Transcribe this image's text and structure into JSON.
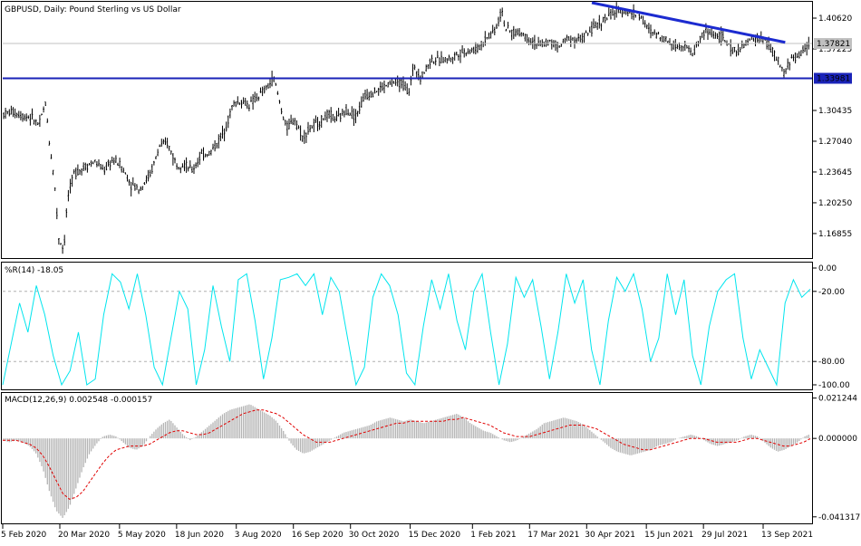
{
  "window": {
    "symbol_title": "GBPUSD, Daily:  Pound Sterling vs US Dollar"
  },
  "colors": {
    "background": "#ffffff",
    "candle": "#000000",
    "trendline": "#1c2bd0",
    "support_line": "#1a23b8",
    "current_price_line": "#c0c0c0",
    "wpr_line": "#00e5ee",
    "macd_hist": "#b4b4b4",
    "macd_signal": "#e00000",
    "level_line": "#b0b0b0",
    "label_bg_support": "#1a23b8",
    "label_bg_current": "#c0c0c0"
  },
  "chart_data": [
    {
      "type": "candlestick",
      "title": "GBPUSD, Daily:  Pound Sterling vs US Dollar",
      "y_ticks": [
        "1.40620",
        "1.37225",
        "1.30435",
        "1.27040",
        "1.23645",
        "1.20250",
        "1.16855"
      ],
      "ylim": [
        1.1425,
        1.4232
      ],
      "x_ticks": [
        "5 Feb 2020",
        "20 Mar 2020",
        "5 May 2020",
        "18 Jun 2020",
        "3 Aug 2020",
        "16 Sep 2020",
        "30 Oct 2020",
        "15 Dec 2020",
        "1 Feb 2021",
        "17 Mar 2021",
        "30 Apr 2021",
        "15 Jun 2021",
        "29 Jul 2021",
        "13 Sep 2021"
      ],
      "support_level": {
        "label": "1.33981",
        "value": 1.33981
      },
      "current_price": {
        "label": "1.37821",
        "value": 1.37821
      },
      "trendline": {
        "from": {
          "x": "4 May 2021",
          "y": 1.4232
        },
        "to": {
          "x": "30 Sep 2021",
          "y": 1.3795
        }
      },
      "path": [
        {
          "x": "5 Feb 2020",
          "y": 1.3
        },
        {
          "x": "12 Feb 2020",
          "y": 1.303
        },
        {
          "x": "21 Feb 2020",
          "y": 1.298
        },
        {
          "x": "27 Feb 2020",
          "y": 1.297
        },
        {
          "x": "4 Mar 2020",
          "y": 1.288
        },
        {
          "x": "9 Mar 2020",
          "y": 1.312
        },
        {
          "x": "12 Mar 2020",
          "y": 1.268
        },
        {
          "x": "16 Mar 2020",
          "y": 1.225
        },
        {
          "x": "19 Mar 2020",
          "y": 1.165
        },
        {
          "x": "23 Mar 2020",
          "y": 1.15
        },
        {
          "x": "26 Mar 2020",
          "y": 1.208
        },
        {
          "x": "31 Mar 2020",
          "y": 1.235
        },
        {
          "x": "8 Apr 2020",
          "y": 1.242
        },
        {
          "x": "16 Apr 2020",
          "y": 1.248
        },
        {
          "x": "23 Apr 2020",
          "y": 1.238
        },
        {
          "x": "30 Apr 2020",
          "y": 1.25
        },
        {
          "x": "6 May 2020",
          "y": 1.244
        },
        {
          "x": "14 May 2020",
          "y": 1.222
        },
        {
          "x": "21 May 2020",
          "y": 1.218
        },
        {
          "x": "29 May 2020",
          "y": 1.235
        },
        {
          "x": "5 Jun 2020",
          "y": 1.265
        },
        {
          "x": "11 Jun 2020",
          "y": 1.268
        },
        {
          "x": "18 Jun 2020",
          "y": 1.245
        },
        {
          "x": "24 Jun 2020",
          "y": 1.245
        },
        {
          "x": "30 Jun 2020",
          "y": 1.238
        },
        {
          "x": "7 Jul 2020",
          "y": 1.255
        },
        {
          "x": "14 Jul 2020",
          "y": 1.258
        },
        {
          "x": "21 Jul 2020",
          "y": 1.272
        },
        {
          "x": "27 Jul 2020",
          "y": 1.29
        },
        {
          "x": "31 Jul 2020",
          "y": 1.31
        },
        {
          "x": "6 Aug 2020",
          "y": 1.315
        },
        {
          "x": "13 Aug 2020",
          "y": 1.31
        },
        {
          "x": "20 Aug 2020",
          "y": 1.32
        },
        {
          "x": "27 Aug 2020",
          "y": 1.33
        },
        {
          "x": "1 Sep 2020",
          "y": 1.34
        },
        {
          "x": "8 Sep 2020",
          "y": 1.298
        },
        {
          "x": "11 Sep 2020",
          "y": 1.285
        },
        {
          "x": "17 Sep 2020",
          "y": 1.295
        },
        {
          "x": "23 Sep 2020",
          "y": 1.275
        },
        {
          "x": "29 Sep 2020",
          "y": 1.285
        },
        {
          "x": "6 Oct 2020",
          "y": 1.292
        },
        {
          "x": "13 Oct 2020",
          "y": 1.3
        },
        {
          "x": "20 Oct 2020",
          "y": 1.295
        },
        {
          "x": "27 Oct 2020",
          "y": 1.305
        },
        {
          "x": "3 Nov 2020",
          "y": 1.298
        },
        {
          "x": "10 Nov 2020",
          "y": 1.32
        },
        {
          "x": "17 Nov 2020",
          "y": 1.325
        },
        {
          "x": "24 Nov 2020",
          "y": 1.33
        },
        {
          "x": "1 Dec 2020",
          "y": 1.335
        },
        {
          "x": "8 Dec 2020",
          "y": 1.335
        },
        {
          "x": "14 Dec 2020",
          "y": 1.325
        },
        {
          "x": "18 Dec 2020",
          "y": 1.355
        },
        {
          "x": "23 Dec 2020",
          "y": 1.34
        },
        {
          "x": "31 Dec 2020",
          "y": 1.36
        },
        {
          "x": "8 Jan 2021",
          "y": 1.36
        },
        {
          "x": "15 Jan 2021",
          "y": 1.362
        },
        {
          "x": "22 Jan 2021",
          "y": 1.368
        },
        {
          "x": "29 Jan 2021",
          "y": 1.37
        },
        {
          "x": "5 Feb 2021",
          "y": 1.372
        },
        {
          "x": "12 Feb 2021",
          "y": 1.385
        },
        {
          "x": "19 Feb 2021",
          "y": 1.395
        },
        {
          "x": "24 Feb 2021",
          "y": 1.415
        },
        {
          "x": "26 Feb 2021",
          "y": 1.395
        },
        {
          "x": "4 Mar 2021",
          "y": 1.39
        },
        {
          "x": "11 Mar 2021",
          "y": 1.39
        },
        {
          "x": "18 Mar 2021",
          "y": 1.382
        },
        {
          "x": "25 Mar 2021",
          "y": 1.376
        },
        {
          "x": "1 Apr 2021",
          "y": 1.38
        },
        {
          "x": "9 Apr 2021",
          "y": 1.375
        },
        {
          "x": "16 Apr 2021",
          "y": 1.385
        },
        {
          "x": "23 Apr 2021",
          "y": 1.382
        },
        {
          "x": "30 Apr 2021",
          "y": 1.388
        },
        {
          "x": "7 May 2021",
          "y": 1.398
        },
        {
          "x": "14 May 2021",
          "y": 1.405
        },
        {
          "x": "21 May 2021",
          "y": 1.412
        },
        {
          "x": "28 May 2021",
          "y": 1.415
        },
        {
          "x": "3 Jun 2021",
          "y": 1.412
        },
        {
          "x": "10 Jun 2021",
          "y": 1.41
        },
        {
          "x": "17 Jun 2021",
          "y": 1.392
        },
        {
          "x": "24 Jun 2021",
          "y": 1.388
        },
        {
          "x": "1 Jul 2021",
          "y": 1.382
        },
        {
          "x": "8 Jul 2021",
          "y": 1.375
        },
        {
          "x": "15 Jul 2021",
          "y": 1.378
        },
        {
          "x": "20 Jul 2021",
          "y": 1.365
        },
        {
          "x": "26 Jul 2021",
          "y": 1.382
        },
        {
          "x": "30 Jul 2021",
          "y": 1.392
        },
        {
          "x": "6 Aug 2021",
          "y": 1.388
        },
        {
          "x": "13 Aug 2021",
          "y": 1.385
        },
        {
          "x": "20 Aug 2021",
          "y": 1.37
        },
        {
          "x": "27 Aug 2021",
          "y": 1.372
        },
        {
          "x": "3 Sep 2021",
          "y": 1.382
        },
        {
          "x": "10 Sep 2021",
          "y": 1.385
        },
        {
          "x": "17 Sep 2021",
          "y": 1.378
        },
        {
          "x": "22 Sep 2021",
          "y": 1.365
        },
        {
          "x": "29 Sep 2021",
          "y": 1.345
        },
        {
          "x": "4 Oct 2021",
          "y": 1.36
        },
        {
          "x": "11 Oct 2021",
          "y": 1.365
        },
        {
          "x": "18 Oct 2021",
          "y": 1.378
        }
      ]
    },
    {
      "type": "line",
      "title": "%R(14) -18.05",
      "y_ticks": [
        "0.00",
        "-20.00",
        "-80.00",
        "-100.00"
      ],
      "ylim": [
        -100,
        0
      ],
      "levels": [
        -20,
        -80
      ],
      "series": [
        {
          "values": [
            -100,
            -65,
            -30,
            -55,
            -15,
            -40,
            -75,
            -100,
            -88,
            -55,
            -100,
            -95,
            -40,
            -5,
            -12,
            -35,
            -5,
            -40,
            -85,
            -100,
            -60,
            -20,
            -35,
            -100,
            -70,
            -15,
            -50,
            -80,
            -10,
            -5,
            -45,
            -95,
            -60,
            -10,
            -8,
            -5,
            -15,
            -5,
            -40,
            -8,
            -20,
            -60,
            -100,
            -85,
            -25,
            -5,
            -15,
            -40,
            -90,
            -100,
            -50,
            -10,
            -35,
            -5,
            -45,
            -70,
            -20,
            -5,
            -55,
            -100,
            -65,
            -8,
            -25,
            -10,
            -50,
            -95,
            -55,
            -5,
            -30,
            -10,
            -70,
            -100,
            -45,
            -8,
            -20,
            -5,
            -35,
            -80,
            -60,
            -5,
            -40,
            -10,
            -75,
            -100,
            -50,
            -20,
            -10,
            -5,
            -60,
            -95,
            -70,
            -85,
            -100,
            -30,
            -10,
            -25,
            -18.05
          ]
        }
      ]
    },
    {
      "type": "bar",
      "title": "MACD(12,26,9) 0.002548 -0.000157",
      "y_ticks": [
        "0.021244",
        "0.000000",
        "-0.041317"
      ],
      "ylim": [
        -0.0438,
        0.0225
      ],
      "series": [
        {
          "name": "MACD",
          "values": [
            -0.001,
            -0.002,
            -0.001,
            -0.002,
            -0.004,
            -0.008,
            -0.016,
            -0.028,
            -0.038,
            -0.042,
            -0.036,
            -0.026,
            -0.016,
            -0.008,
            -0.003,
            0.001,
            0.002,
            0.001,
            -0.002,
            -0.005,
            -0.006,
            -0.004,
            0.001,
            0.005,
            0.008,
            0.01,
            0.006,
            0.002,
            -0.001,
            0.001,
            0.004,
            0.007,
            0.01,
            0.013,
            0.015,
            0.016,
            0.017,
            0.018,
            0.016,
            0.014,
            0.012,
            0.009,
            0.004,
            -0.002,
            -0.006,
            -0.008,
            -0.007,
            -0.005,
            -0.003,
            -0.001,
            0.001,
            0.003,
            0.004,
            0.005,
            0.006,
            0.007,
            0.009,
            0.01,
            0.011,
            0.01,
            0.009,
            0.01,
            0.009,
            0.008,
            0.009,
            0.01,
            0.011,
            0.012,
            0.013,
            0.011,
            0.008,
            0.006,
            0.004,
            0.003,
            0.001,
            -0.001,
            -0.002,
            -0.001,
            0.001,
            0.003,
            0.005,
            0.008,
            0.009,
            0.01,
            0.011,
            0.01,
            0.009,
            0.007,
            0.004,
            0.001,
            -0.002,
            -0.005,
            -0.007,
            -0.008,
            -0.009,
            -0.008,
            -0.007,
            -0.006,
            -0.004,
            -0.003,
            -0.002,
            0.0,
            0.001,
            0.002,
            0.001,
            -0.001,
            -0.003,
            -0.004,
            -0.003,
            -0.002,
            -0.001,
            0.001,
            0.002,
            0.001,
            -0.002,
            -0.005,
            -0.007,
            -0.006,
            -0.004,
            -0.002,
            0.001,
            0.0025
          ]
        },
        {
          "name": "Signal",
          "values": [
            -0.001,
            -0.001,
            -0.001,
            -0.002,
            -0.003,
            -0.005,
            -0.009,
            -0.015,
            -0.022,
            -0.029,
            -0.032,
            -0.031,
            -0.028,
            -0.023,
            -0.018,
            -0.013,
            -0.009,
            -0.006,
            -0.005,
            -0.004,
            -0.004,
            -0.004,
            -0.003,
            -0.001,
            0.001,
            0.003,
            0.004,
            0.004,
            0.003,
            0.002,
            0.002,
            0.003,
            0.005,
            0.007,
            0.009,
            0.011,
            0.013,
            0.014,
            0.015,
            0.015,
            0.014,
            0.013,
            0.011,
            0.008,
            0.005,
            0.002,
            0.0,
            -0.002,
            -0.002,
            -0.002,
            -0.001,
            0.0,
            0.001,
            0.002,
            0.003,
            0.004,
            0.005,
            0.006,
            0.007,
            0.008,
            0.008,
            0.009,
            0.009,
            0.009,
            0.009,
            0.009,
            0.009,
            0.01,
            0.01,
            0.011,
            0.01,
            0.009,
            0.008,
            0.007,
            0.005,
            0.003,
            0.002,
            0.001,
            0.001,
            0.001,
            0.002,
            0.003,
            0.004,
            0.005,
            0.006,
            0.007,
            0.007,
            0.007,
            0.006,
            0.005,
            0.003,
            0.001,
            -0.001,
            -0.003,
            -0.004,
            -0.005,
            -0.006,
            -0.006,
            -0.005,
            -0.004,
            -0.003,
            -0.002,
            -0.001,
            0.0,
            0.0,
            0.0,
            -0.001,
            -0.002,
            -0.002,
            -0.002,
            -0.002,
            -0.001,
            0.0,
            0.0,
            -0.001,
            -0.002,
            -0.003,
            -0.004,
            -0.004,
            -0.003,
            -0.002,
            -0.000157
          ]
        }
      ]
    }
  ]
}
